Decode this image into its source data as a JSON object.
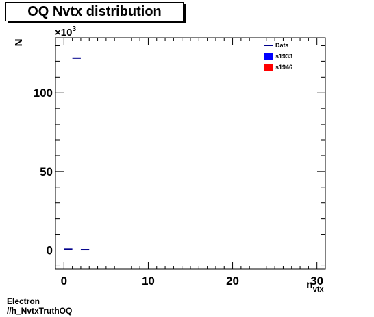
{
  "title": "OQ Nvtx distribution",
  "footer": {
    "line1": "Electron",
    "line2": "//h_NvtxTruthOQ"
  },
  "chart_data": {
    "type": "scatter",
    "title": "OQ Nvtx distribution",
    "xlabel": "n",
    "xlabel_sub": "vtx",
    "ylabel": "N",
    "y_multiplier_label": "×10",
    "y_multiplier_exp": "3",
    "xlim": [
      -1,
      31
    ],
    "ylim": [
      -12,
      135
    ],
    "x_ticks": [
      0,
      10,
      20,
      30
    ],
    "x_tick_labels": [
      "0",
      "10",
      "20",
      "30"
    ],
    "y_ticks": [
      0,
      50,
      100
    ],
    "y_tick_labels": [
      "0",
      "50",
      "100"
    ],
    "grid": false,
    "legend_position": "top-right",
    "series": [
      {
        "name": "Data",
        "color": "#00008b",
        "style": "marker-line",
        "points": [
          {
            "x": 0.5,
            "y": 0.5,
            "xerr": 0.5
          },
          {
            "x": 1.5,
            "y": 122,
            "xerr": 0.5
          },
          {
            "x": 2.5,
            "y": 0.2,
            "xerr": 0.5
          }
        ]
      },
      {
        "name": "s1933",
        "color": "#0000ff",
        "style": "fill",
        "points": []
      },
      {
        "name": "s1946",
        "color": "#ff0000",
        "style": "fill",
        "points": []
      }
    ]
  }
}
